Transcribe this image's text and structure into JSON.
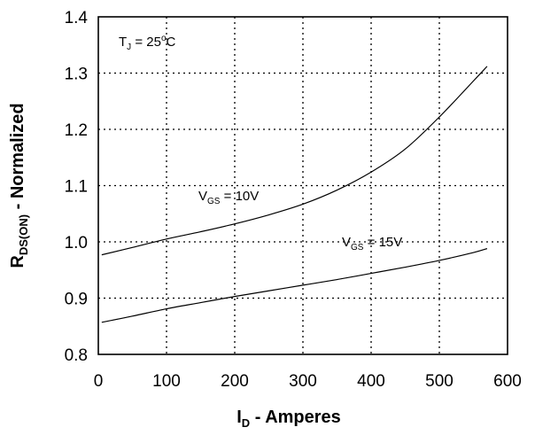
{
  "chart_data": {
    "type": "line",
    "xlabel": {
      "main": "I",
      "sub": "D",
      "rest": " - Amperes"
    },
    "ylabel": {
      "main": "R",
      "sub": "DS(ON)",
      "rest": " - Normalized"
    },
    "xlim": [
      0,
      600
    ],
    "ylim": [
      0.8,
      1.4
    ],
    "xticks": [
      0,
      100,
      200,
      300,
      400,
      500,
      600
    ],
    "yticks": [
      0.8,
      0.9,
      1.0,
      1.1,
      1.2,
      1.3,
      1.4
    ],
    "xtick_labels": [
      "0",
      "100",
      "200",
      "300",
      "400",
      "500",
      "600"
    ],
    "ytick_labels": [
      "0.8",
      "0.9",
      "1.0",
      "1.1",
      "1.2",
      "1.3",
      "1.4"
    ],
    "grid": true,
    "annotations": [
      {
        "main": "T",
        "sub": "J",
        "rest": " = 25",
        "sup": "o",
        "after": "C"
      }
    ],
    "series": [
      {
        "label": {
          "main": "V",
          "sub": "GS",
          "rest": " = 10V"
        },
        "x": [
          5,
          50,
          100,
          150,
          200,
          250,
          300,
          350,
          400,
          450,
          500,
          550,
          570
        ],
        "y": [
          0.977,
          0.99,
          1.005,
          1.018,
          1.032,
          1.048,
          1.067,
          1.092,
          1.124,
          1.165,
          1.222,
          1.286,
          1.312
        ]
      },
      {
        "label": {
          "main": "V",
          "sub": "GS",
          "rest": " = 15V"
        },
        "x": [
          5,
          50,
          100,
          150,
          200,
          250,
          300,
          350,
          400,
          450,
          500,
          550,
          570
        ],
        "y": [
          0.857,
          0.868,
          0.881,
          0.892,
          0.903,
          0.913,
          0.923,
          0.933,
          0.944,
          0.955,
          0.967,
          0.981,
          0.988
        ]
      }
    ]
  }
}
